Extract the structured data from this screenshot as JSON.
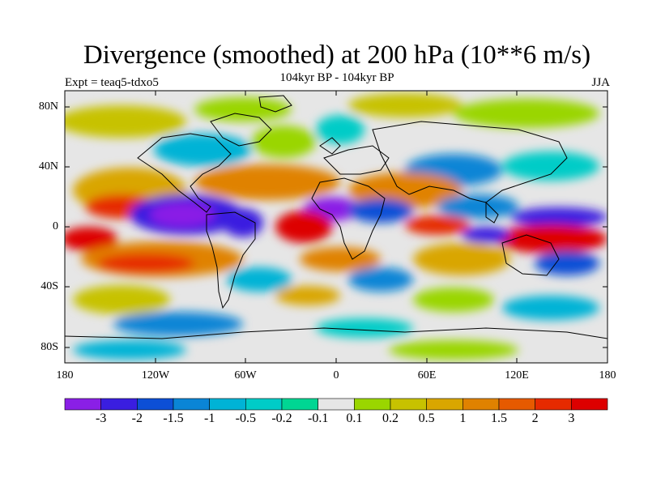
{
  "header": {
    "title": "Divergence (smoothed) at 200 hPa (10**6 m/s)",
    "subtitle": "104kyr BP - 104kyr BP",
    "experiment": "Expt = teaq5-tdxo5",
    "season": "JJA"
  },
  "map": {
    "lat_labels": [
      "80N",
      "40N",
      "0",
      "40S",
      "80S"
    ],
    "lon_labels": [
      "180",
      "120W",
      "60W",
      "0",
      "60E",
      "120E",
      "180"
    ]
  },
  "colorbar": {
    "levels": [
      "-3",
      "-2",
      "-1.5",
      "-1",
      "-0.5",
      "-0.2",
      "-0.1",
      "0.1",
      "0.2",
      "0.5",
      "1",
      "1.5",
      "2",
      "3"
    ],
    "colors": [
      "#8a1fe6",
      "#3a1ee0",
      "#0c4fd6",
      "#0a85d6",
      "#00b3d6",
      "#00ccc7",
      "#00d693",
      "#e6e6e6",
      "#9ad600",
      "#c7c200",
      "#d9a600",
      "#e08200",
      "#e65a00",
      "#e62a00",
      "#dd0000"
    ]
  },
  "colors": {
    "background": "#ffffff",
    "coast": "#000000",
    "neutral": "#e6e6e6"
  }
}
